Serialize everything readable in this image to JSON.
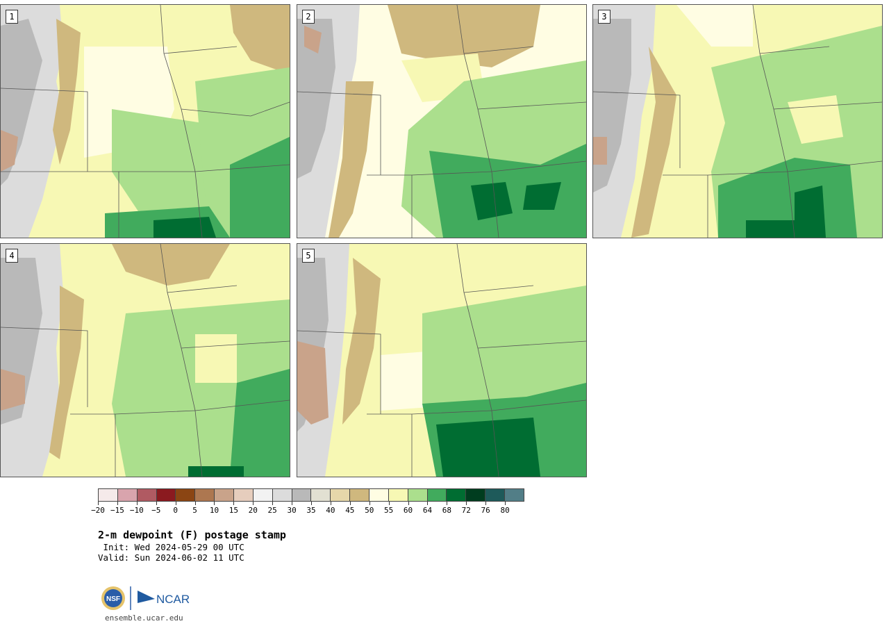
{
  "panels": [
    {
      "label": "1"
    },
    {
      "label": "2"
    },
    {
      "label": "3"
    },
    {
      "label": "4"
    },
    {
      "label": "5"
    }
  ],
  "colorbar": {
    "colors": [
      "#f5eaea",
      "#d9a4ad",
      "#b05a62",
      "#8b1a1f",
      "#8b4513",
      "#ad7750",
      "#c9a38a",
      "#e6cdbd",
      "#f2f2f2",
      "#dcdcdc",
      "#b9b9b9",
      "#e2e0d2",
      "#e6d7aa",
      "#cfb87e",
      "#fffde3",
      "#f7f8b4",
      "#abdf8d",
      "#41ab5d",
      "#006d32",
      "#003d1f",
      "#1e5a5a",
      "#527e87"
    ],
    "tick_labels": [
      "−20",
      "−15",
      "−10",
      "−5",
      "0",
      "5",
      "10",
      "15",
      "20",
      "25",
      "30",
      "35",
      "40",
      "45",
      "50",
      "55",
      "60",
      "64",
      "68",
      "72",
      "76",
      "80"
    ]
  },
  "title": "2-m dewpoint (F) postage stamp",
  "init": " Init: Wed 2024-05-29 00 UTC",
  "valid": "Valid: Sun 2024-06-02 11 UTC",
  "logos": {
    "left": "NSF",
    "right": "NCAR"
  },
  "site": "ensemble.ucar.edu"
}
